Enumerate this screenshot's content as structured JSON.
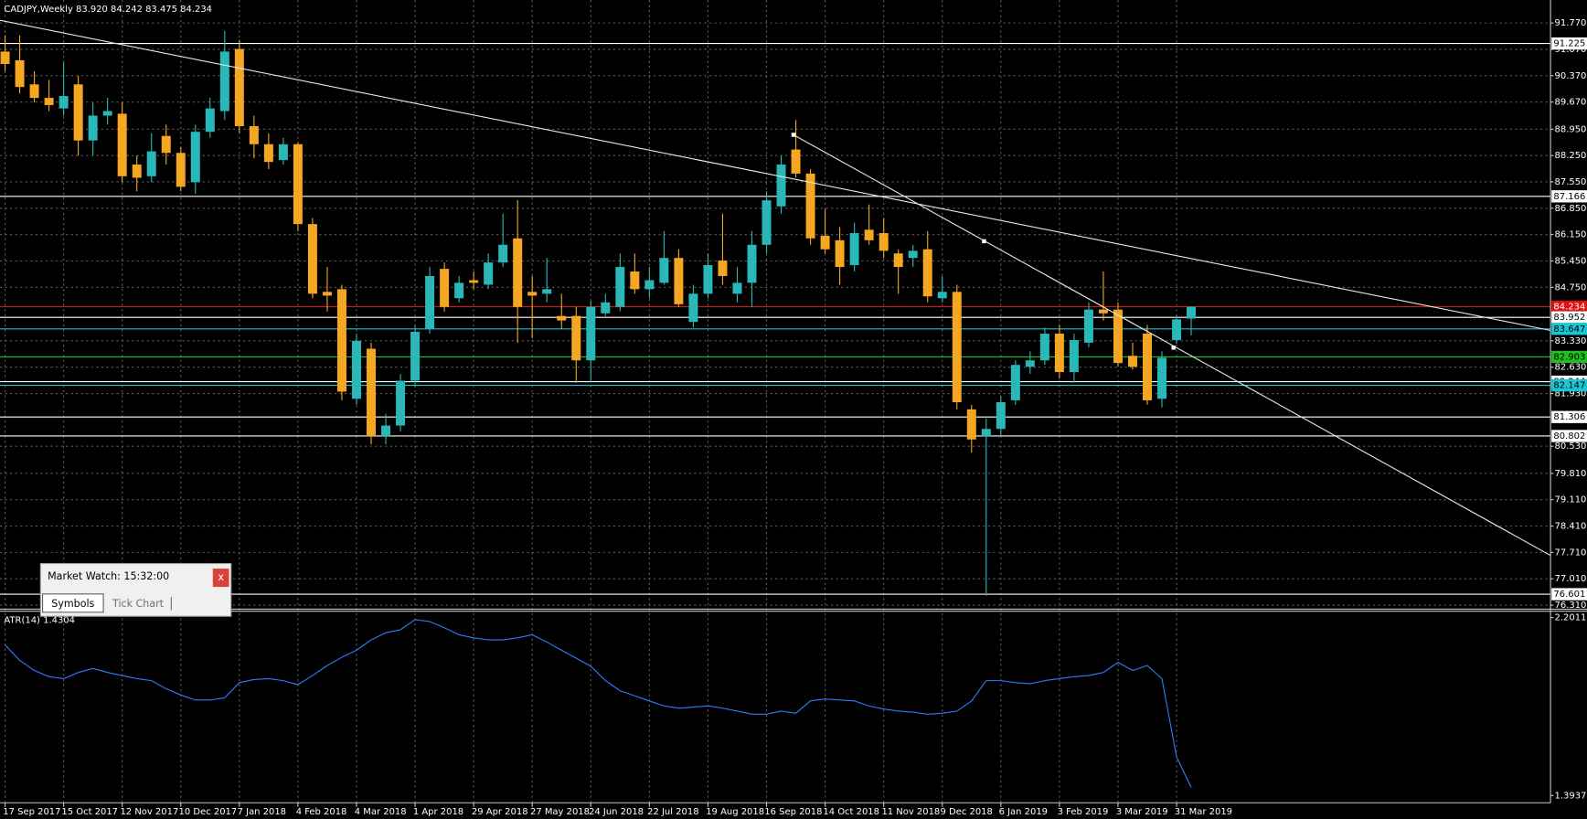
{
  "chart_data": {
    "type": "candlestick",
    "title": "CADJPY,Weekly  83.920 84.242 83.475 84.234",
    "up_color": "#2ab7b7",
    "down_color": "#f5a623",
    "grid": true,
    "ylim": [
      76.23,
      92.38
    ],
    "yticks": [
      {
        "value": 91.77,
        "label": "91.770"
      },
      {
        "value": 91.07,
        "label": "91.070"
      },
      {
        "value": 90.37,
        "label": "90.370"
      },
      {
        "value": 89.67,
        "label": "89.670"
      },
      {
        "value": 88.95,
        "label": "88.950"
      },
      {
        "value": 88.25,
        "label": "88.250"
      },
      {
        "value": 87.55,
        "label": "87.550"
      },
      {
        "value": 86.85,
        "label": "86.850"
      },
      {
        "value": 86.15,
        "label": "86.150"
      },
      {
        "value": 85.45,
        "label": "85.450"
      },
      {
        "value": 84.75,
        "label": "84.750"
      },
      {
        "value": 83.33,
        "label": "83.330"
      },
      {
        "value": 82.63,
        "label": "82.630"
      },
      {
        "value": 81.93,
        "label": "81.930"
      },
      {
        "value": 80.53,
        "label": "80.530"
      },
      {
        "value": 79.81,
        "label": "79.810"
      },
      {
        "value": 79.11,
        "label": "79.110"
      },
      {
        "value": 78.41,
        "label": "78.410"
      },
      {
        "value": 77.71,
        "label": "77.710"
      },
      {
        "value": 77.01,
        "label": "77.010"
      },
      {
        "value": 76.31,
        "label": "76.310"
      }
    ],
    "levels": [
      {
        "value": 91.225,
        "color": "#ffffff"
      },
      {
        "value": 87.166,
        "color": "#ffffff"
      },
      {
        "value": 84.234,
        "color": "#e01010"
      },
      {
        "value": 83.952,
        "color": "#ffffff"
      },
      {
        "value": 83.647,
        "color": "#19c6d6"
      },
      {
        "value": 82.903,
        "color": "#1fc01f"
      },
      {
        "value": 82.244,
        "color": "#ffffff"
      },
      {
        "value": 82.147,
        "color": "#19c6d6"
      },
      {
        "value": 81.306,
        "color": "#ffffff"
      },
      {
        "value": 80.802,
        "color": "#ffffff"
      },
      {
        "value": 76.601,
        "color": "#ffffff"
      }
    ],
    "categories": [
      "17 Sep 2017",
      null,
      null,
      null,
      "15 Oct 2017",
      null,
      null,
      null,
      "12 Nov 2017",
      null,
      null,
      null,
      "10 Dec 2017",
      null,
      null,
      null,
      "7 Jan 2018",
      null,
      null,
      null,
      "4 Feb 2018",
      null,
      null,
      null,
      "4 Mar 2018",
      null,
      null,
      null,
      "1 Apr 2018",
      null,
      null,
      null,
      "29 Apr 2018",
      null,
      null,
      null,
      "27 May 2018",
      null,
      null,
      null,
      "24 Jun 2018",
      null,
      null,
      null,
      "22 Jul 2018",
      null,
      null,
      null,
      "19 Aug 2018",
      null,
      null,
      null,
      "16 Sep 2018",
      null,
      null,
      null,
      "14 Oct 2018",
      null,
      null,
      null,
      "11 Nov 2018",
      null,
      null,
      null,
      "9 Dec 2018",
      null,
      null,
      null,
      "6 Jan 2019",
      null,
      null,
      null,
      "3 Feb 2019",
      null,
      null,
      null,
      "3 Mar 2019",
      null,
      null,
      null,
      "31 Mar 2019",
      null
    ],
    "open": [
      91.01,
      90.78,
      90.14,
      89.78,
      89.5,
      90.14,
      88.65,
      89.31,
      89.36,
      88.01,
      87.7,
      88.77,
      88.32,
      87.54,
      88.88,
      89.43,
      91.08,
      89.03,
      88.55,
      88.13,
      88.55,
      86.43,
      84.63,
      84.7,
      81.79,
      83.12,
      80.8,
      81.08,
      82.27,
      83.64,
      85.24,
      84.46,
      84.94,
      84.82,
      85.41,
      86.05,
      84.63,
      84.58,
      83.99,
      83.99,
      82.81,
      84.06,
      84.23,
      85.17,
      84.7,
      84.87,
      85.53,
      83.83,
      84.58,
      85.46,
      84.58,
      84.87,
      85.88,
      86.9,
      88.41,
      87.77,
      86.12,
      86.0,
      85.34,
      86.28,
      86.19,
      85.65,
      85.53,
      85.76,
      84.46,
      84.63,
      81.51,
      80.8,
      80.99,
      81.75,
      82.64,
      82.81,
      83.52,
      82.5,
      83.28,
      84.16,
      84.16,
      82.93,
      83.52,
      81.79,
      83.35,
      83.92
    ],
    "high": [
      91.44,
      91.44,
      90.49,
      90.26,
      90.73,
      90.37,
      89.66,
      89.78,
      89.66,
      88.25,
      88.84,
      89.07,
      88.48,
      89.07,
      89.78,
      91.56,
      91.32,
      89.31,
      88.84,
      88.72,
      88.6,
      86.59,
      85.29,
      84.82,
      83.52,
      83.28,
      81.39,
      82.45,
      83.75,
      85.29,
      85.41,
      85.05,
      85.17,
      85.65,
      86.71,
      87.06,
      85.05,
      85.53,
      84.58,
      84.23,
      84.39,
      84.58,
      85.65,
      85.65,
      85.29,
      86.24,
      85.76,
      84.82,
      85.65,
      86.71,
      85.29,
      86.24,
      87.3,
      88.25,
      89.19,
      87.89,
      86.83,
      86.35,
      86.47,
      86.95,
      86.59,
      85.76,
      85.88,
      86.24,
      85.05,
      84.82,
      81.63,
      81.27,
      81.86,
      82.81,
      83.05,
      83.68,
      83.75,
      83.52,
      84.35,
      85.17,
      84.35,
      83.28,
      83.75,
      83.05,
      84.0,
      84.242
    ],
    "low": [
      90.49,
      89.9,
      89.66,
      89.43,
      89.31,
      88.25,
      88.25,
      89.07,
      87.54,
      87.3,
      87.54,
      88.01,
      87.3,
      87.23,
      88.72,
      89.19,
      88.84,
      88.18,
      87.89,
      88.01,
      86.24,
      84.46,
      84.11,
      81.75,
      81.63,
      80.58,
      80.58,
      80.92,
      82.1,
      83.52,
      84.11,
      84.35,
      84.7,
      84.7,
      85.29,
      83.28,
      83.4,
      84.35,
      83.64,
      82.22,
      82.22,
      83.99,
      84.11,
      84.58,
      84.46,
      84.82,
      84.23,
      83.68,
      84.46,
      84.82,
      84.35,
      84.23,
      85.65,
      86.71,
      87.66,
      85.88,
      85.65,
      84.82,
      85.17,
      85.88,
      85.53,
      84.58,
      85.29,
      84.35,
      84.35,
      81.51,
      80.36,
      76.56,
      80.8,
      81.63,
      82.45,
      82.69,
      82.33,
      82.22,
      83.16,
      83.87,
      82.64,
      82.57,
      81.63,
      81.56,
      83.25,
      83.475
    ],
    "close": [
      90.68,
      90.07,
      89.78,
      89.59,
      89.83,
      88.65,
      89.31,
      89.43,
      87.7,
      87.66,
      88.36,
      88.32,
      87.42,
      88.88,
      89.5,
      91.01,
      89.03,
      88.55,
      88.08,
      88.55,
      86.43,
      84.58,
      84.53,
      81.98,
      83.33,
      80.8,
      81.08,
      82.27,
      83.57,
      85.05,
      84.23,
      84.87,
      84.87,
      85.41,
      85.88,
      84.23,
      84.53,
      84.7,
      83.87,
      82.81,
      84.23,
      84.35,
      85.29,
      84.7,
      84.94,
      85.53,
      84.3,
      84.58,
      85.34,
      85.05,
      84.87,
      85.88,
      87.06,
      88.01,
      87.77,
      86.05,
      85.76,
      85.29,
      86.19,
      86.0,
      85.72,
      85.29,
      85.72,
      84.51,
      84.63,
      81.7,
      80.71,
      80.99,
      81.7,
      82.69,
      82.81,
      83.52,
      82.5,
      83.35,
      84.16,
      84.06,
      82.74,
      82.64,
      81.75,
      82.88,
      83.9,
      84.234
    ],
    "indicator": {
      "type": "line",
      "label": "ATR(14) 1.4304",
      "color": "#2f7cff",
      "ylim": [
        1.37,
        2.23
      ],
      "yticks": [
        2.2011,
        1.3937
      ],
      "values": [
        2.077,
        2.007,
        1.961,
        1.933,
        1.924,
        1.952,
        1.97,
        1.952,
        1.938,
        1.924,
        1.915,
        1.878,
        1.85,
        1.827,
        1.827,
        1.837,
        1.906,
        1.92,
        1.924,
        1.915,
        1.897,
        1.938,
        1.984,
        2.021,
        2.053,
        2.1,
        2.132,
        2.146,
        2.192,
        2.183,
        2.155,
        2.123,
        2.109,
        2.1,
        2.1,
        2.109,
        2.123,
        2.09,
        2.053,
        2.017,
        1.98,
        1.915,
        1.869,
        1.846,
        1.823,
        1.8,
        1.79,
        1.795,
        1.8,
        1.79,
        1.777,
        1.763,
        1.763,
        1.777,
        1.767,
        1.823,
        1.832,
        1.827,
        1.823,
        1.8,
        1.786,
        1.777,
        1.772,
        1.763,
        1.767,
        1.777,
        1.823,
        1.915,
        1.915,
        1.906,
        1.901,
        1.915,
        1.924,
        1.933,
        1.938,
        1.952,
        1.998,
        1.961,
        1.984,
        1.924,
        1.569,
        1.4304
      ]
    }
  },
  "market_watch": {
    "title": "Market Watch: 15:32:00",
    "close": "x",
    "tabs": [
      "Symbols",
      "Tick Chart"
    ]
  }
}
